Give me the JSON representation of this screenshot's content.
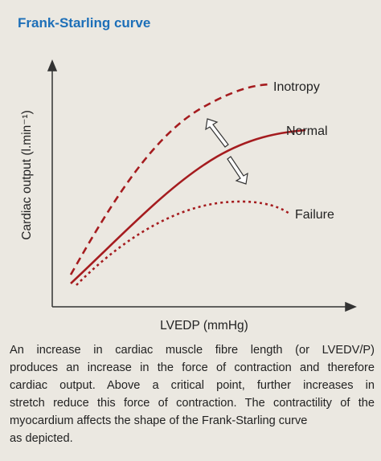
{
  "header": {
    "title": "Frank-Starling curve"
  },
  "axes": {
    "y_label": "Cardiac output (l.min⁻¹)",
    "x_label": "LVEDP (mmHg)"
  },
  "curves": [
    {
      "label": "Inotropy"
    },
    {
      "label": "Normal"
    },
    {
      "label": "Failure"
    }
  ],
  "caption": {
    "lines": [
      "An increase in cardiac muscle fibre length (or LVEDV/P)",
      "produces an increase in the force of contraction and therefore",
      "cardiac output. Above a critical point, further increases in",
      "stretch reduce this force of contraction. The contractility of the",
      "myocardium affects the shape of the Frank-Starling curve",
      "as depicted."
    ]
  }
}
